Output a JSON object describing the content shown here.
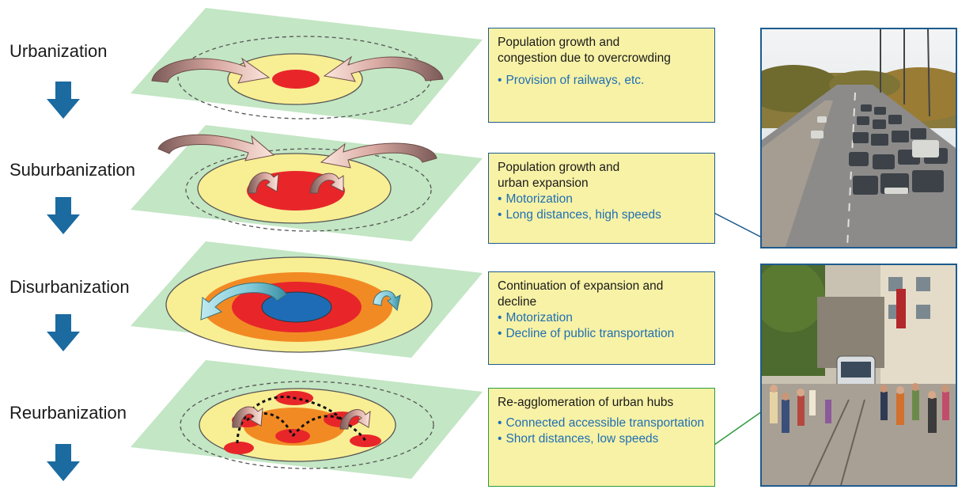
{
  "stages": [
    {
      "label": "Urbanization"
    },
    {
      "label": "Suburbanization"
    },
    {
      "label": "Disurbanization"
    },
    {
      "label": "Reurbanization"
    }
  ],
  "boxes": [
    {
      "title_lines": [
        "Population growth and",
        "congestion due to overcrowding"
      ],
      "bullets": [
        "Provision of railways, etc."
      ]
    },
    {
      "title_lines": [
        "Population growth and",
        "urban expansion"
      ],
      "bullets": [
        "Motorization",
        "Long distances, high speeds"
      ]
    },
    {
      "title_lines": [
        "Continuation of expansion and",
        "decline"
      ],
      "bullets": [
        "Motorization",
        "Decline of public transportation"
      ]
    },
    {
      "title_lines": [
        "Re-agglomeration of urban hubs"
      ],
      "bullets": [
        "Connected accessible transportation",
        "Short distances, low speeds"
      ]
    }
  ],
  "photos": [
    {
      "subject": "highway-traffic-jam"
    },
    {
      "subject": "pedestrian-street-with-tram"
    }
  ],
  "colors": {
    "plane_green": "#c3e6c4",
    "ring_yellow": "#f8ee94",
    "core_red": "#e8262a",
    "ring_orange": "#f28a24",
    "center_blue": "#1e6cb5",
    "arrow_blue": "#1b6aa0",
    "box_fill": "#f8f2a6",
    "box_border_blue": "#1d5b8e",
    "box_border_green": "#2e9a3a",
    "bullet_text": "#1f6fb4"
  }
}
